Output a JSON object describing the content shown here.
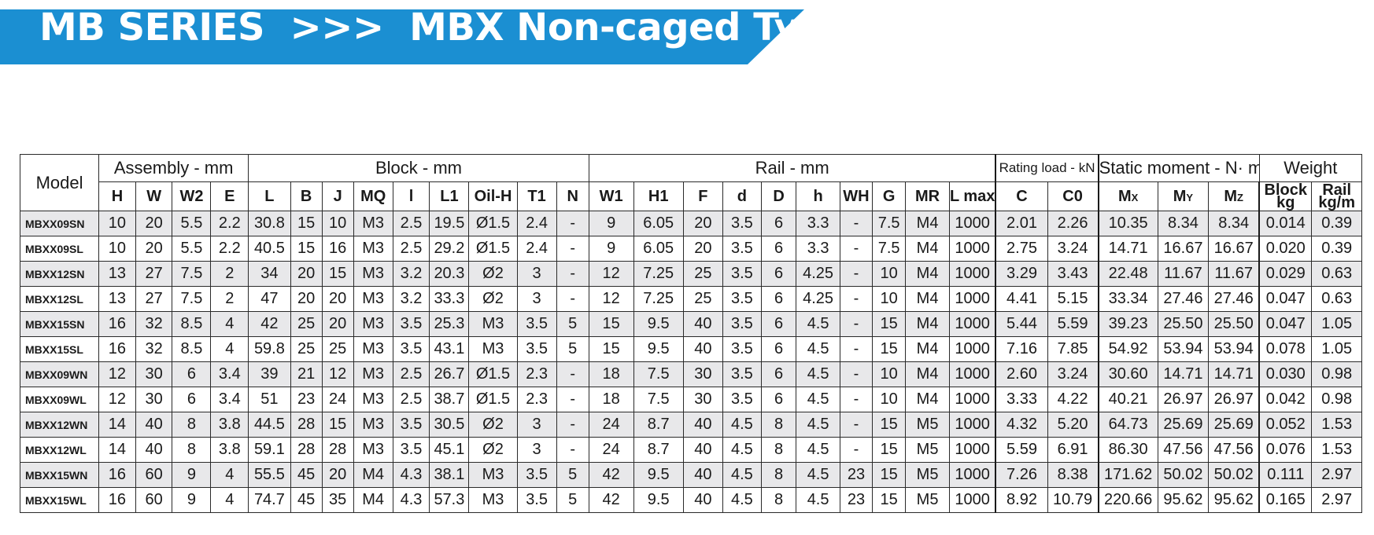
{
  "banner": {
    "title": "MB SERIES  >>>  MBX Non-caged Type",
    "color": "#1b8fd2"
  },
  "table": {
    "model_header": "Model",
    "groups": [
      {
        "label": "Assembly - mm",
        "span": 4
      },
      {
        "label": "Block - mm",
        "span": 9
      },
      {
        "label": "Rail - mm",
        "span": 10
      },
      {
        "label": "Rating load - kN",
        "span": 2
      },
      {
        "label": "Static moment - N· m",
        "span": 3
      },
      {
        "label": "Weight",
        "span": 2
      }
    ],
    "columns": [
      "H",
      "W",
      "W2",
      "E",
      "L",
      "B",
      "J",
      "MQ",
      "l",
      "L1",
      "Oil-H",
      "T1",
      "N",
      "W1",
      "H1",
      "F",
      "d",
      "D",
      "h",
      "WH",
      "G",
      "MR",
      "L max",
      "C",
      "C0"
    ],
    "moment_columns": [
      {
        "main": "M",
        "sub": "X"
      },
      {
        "main": "M",
        "sub": "Y"
      },
      {
        "main": "M",
        "sub": "Z"
      }
    ],
    "weight_columns": [
      {
        "top": "Block",
        "bottom": "kg"
      },
      {
        "top": "Rail",
        "bottom": "kg/m"
      }
    ],
    "rows": [
      [
        "MBXX09SN",
        "10",
        "20",
        "5.5",
        "2.2",
        "30.8",
        "15",
        "10",
        "M3",
        "2.5",
        "19.5",
        "Ø1.5",
        "2.4",
        "-",
        "9",
        "6.05",
        "20",
        "3.5",
        "6",
        "3.3",
        "-",
        "7.5",
        "M4",
        "1000",
        "2.01",
        "2.26",
        "10.35",
        "8.34",
        "8.34",
        "0.014",
        "0.39"
      ],
      [
        "MBXX09SL",
        "10",
        "20",
        "5.5",
        "2.2",
        "40.5",
        "15",
        "16",
        "M3",
        "2.5",
        "29.2",
        "Ø1.5",
        "2.4",
        "-",
        "9",
        "6.05",
        "20",
        "3.5",
        "6",
        "3.3",
        "-",
        "7.5",
        "M4",
        "1000",
        "2.75",
        "3.24",
        "14.71",
        "16.67",
        "16.67",
        "0.020",
        "0.39"
      ],
      [
        "MBXX12SN",
        "13",
        "27",
        "7.5",
        "2",
        "34",
        "20",
        "15",
        "M3",
        "3.2",
        "20.3",
        "Ø2",
        "3",
        "-",
        "12",
        "7.25",
        "25",
        "3.5",
        "6",
        "4.25",
        "-",
        "10",
        "M4",
        "1000",
        "3.29",
        "3.43",
        "22.48",
        "11.67",
        "11.67",
        "0.029",
        "0.63"
      ],
      [
        "MBXX12SL",
        "13",
        "27",
        "7.5",
        "2",
        "47",
        "20",
        "20",
        "M3",
        "3.2",
        "33.3",
        "Ø2",
        "3",
        "-",
        "12",
        "7.25",
        "25",
        "3.5",
        "6",
        "4.25",
        "-",
        "10",
        "M4",
        "1000",
        "4.41",
        "5.15",
        "33.34",
        "27.46",
        "27.46",
        "0.047",
        "0.63"
      ],
      [
        "MBXX15SN",
        "16",
        "32",
        "8.5",
        "4",
        "42",
        "25",
        "20",
        "M3",
        "3.5",
        "25.3",
        "M3",
        "3.5",
        "5",
        "15",
        "9.5",
        "40",
        "3.5",
        "6",
        "4.5",
        "-",
        "15",
        "M4",
        "1000",
        "5.44",
        "5.59",
        "39.23",
        "25.50",
        "25.50",
        "0.047",
        "1.05"
      ],
      [
        "MBXX15SL",
        "16",
        "32",
        "8.5",
        "4",
        "59.8",
        "25",
        "25",
        "M3",
        "3.5",
        "43.1",
        "M3",
        "3.5",
        "5",
        "15",
        "9.5",
        "40",
        "3.5",
        "6",
        "4.5",
        "-",
        "15",
        "M4",
        "1000",
        "7.16",
        "7.85",
        "54.92",
        "53.94",
        "53.94",
        "0.078",
        "1.05"
      ],
      [
        "MBXX09WN",
        "12",
        "30",
        "6",
        "3.4",
        "39",
        "21",
        "12",
        "M3",
        "2.5",
        "26.7",
        "Ø1.5",
        "2.3",
        "-",
        "18",
        "7.5",
        "30",
        "3.5",
        "6",
        "4.5",
        "-",
        "10",
        "M4",
        "1000",
        "2.60",
        "3.24",
        "30.60",
        "14.71",
        "14.71",
        "0.030",
        "0.98"
      ],
      [
        "MBXX09WL",
        "12",
        "30",
        "6",
        "3.4",
        "51",
        "23",
        "24",
        "M3",
        "2.5",
        "38.7",
        "Ø1.5",
        "2.3",
        "-",
        "18",
        "7.5",
        "30",
        "3.5",
        "6",
        "4.5",
        "-",
        "10",
        "M4",
        "1000",
        "3.33",
        "4.22",
        "40.21",
        "26.97",
        "26.97",
        "0.042",
        "0.98"
      ],
      [
        "MBXX12WN",
        "14",
        "40",
        "8",
        "3.8",
        "44.5",
        "28",
        "15",
        "M3",
        "3.5",
        "30.5",
        "Ø2",
        "3",
        "-",
        "24",
        "8.7",
        "40",
        "4.5",
        "8",
        "4.5",
        "-",
        "15",
        "M5",
        "1000",
        "4.32",
        "5.20",
        "64.73",
        "25.69",
        "25.69",
        "0.052",
        "1.53"
      ],
      [
        "MBXX12WL",
        "14",
        "40",
        "8",
        "3.8",
        "59.1",
        "28",
        "28",
        "M3",
        "3.5",
        "45.1",
        "Ø2",
        "3",
        "-",
        "24",
        "8.7",
        "40",
        "4.5",
        "8",
        "4.5",
        "-",
        "15",
        "M5",
        "1000",
        "5.59",
        "6.91",
        "86.30",
        "47.56",
        "47.56",
        "0.076",
        "1.53"
      ],
      [
        "MBXX15WN",
        "16",
        "60",
        "9",
        "4",
        "55.5",
        "45",
        "20",
        "M4",
        "4.3",
        "38.1",
        "M3",
        "3.5",
        "5",
        "42",
        "9.5",
        "40",
        "4.5",
        "8",
        "4.5",
        "23",
        "15",
        "M5",
        "1000",
        "7.26",
        "8.38",
        "171.62",
        "50.02",
        "50.02",
        "0.111",
        "2.97"
      ],
      [
        "MBXX15WL",
        "16",
        "60",
        "9",
        "4",
        "74.7",
        "45",
        "35",
        "M4",
        "4.3",
        "57.3",
        "M3",
        "3.5",
        "5",
        "42",
        "9.5",
        "40",
        "4.5",
        "8",
        "4.5",
        "23",
        "15",
        "M5",
        "1000",
        "8.92",
        "10.79",
        "220.66",
        "95.62",
        "95.62",
        "0.165",
        "2.97"
      ]
    ]
  }
}
